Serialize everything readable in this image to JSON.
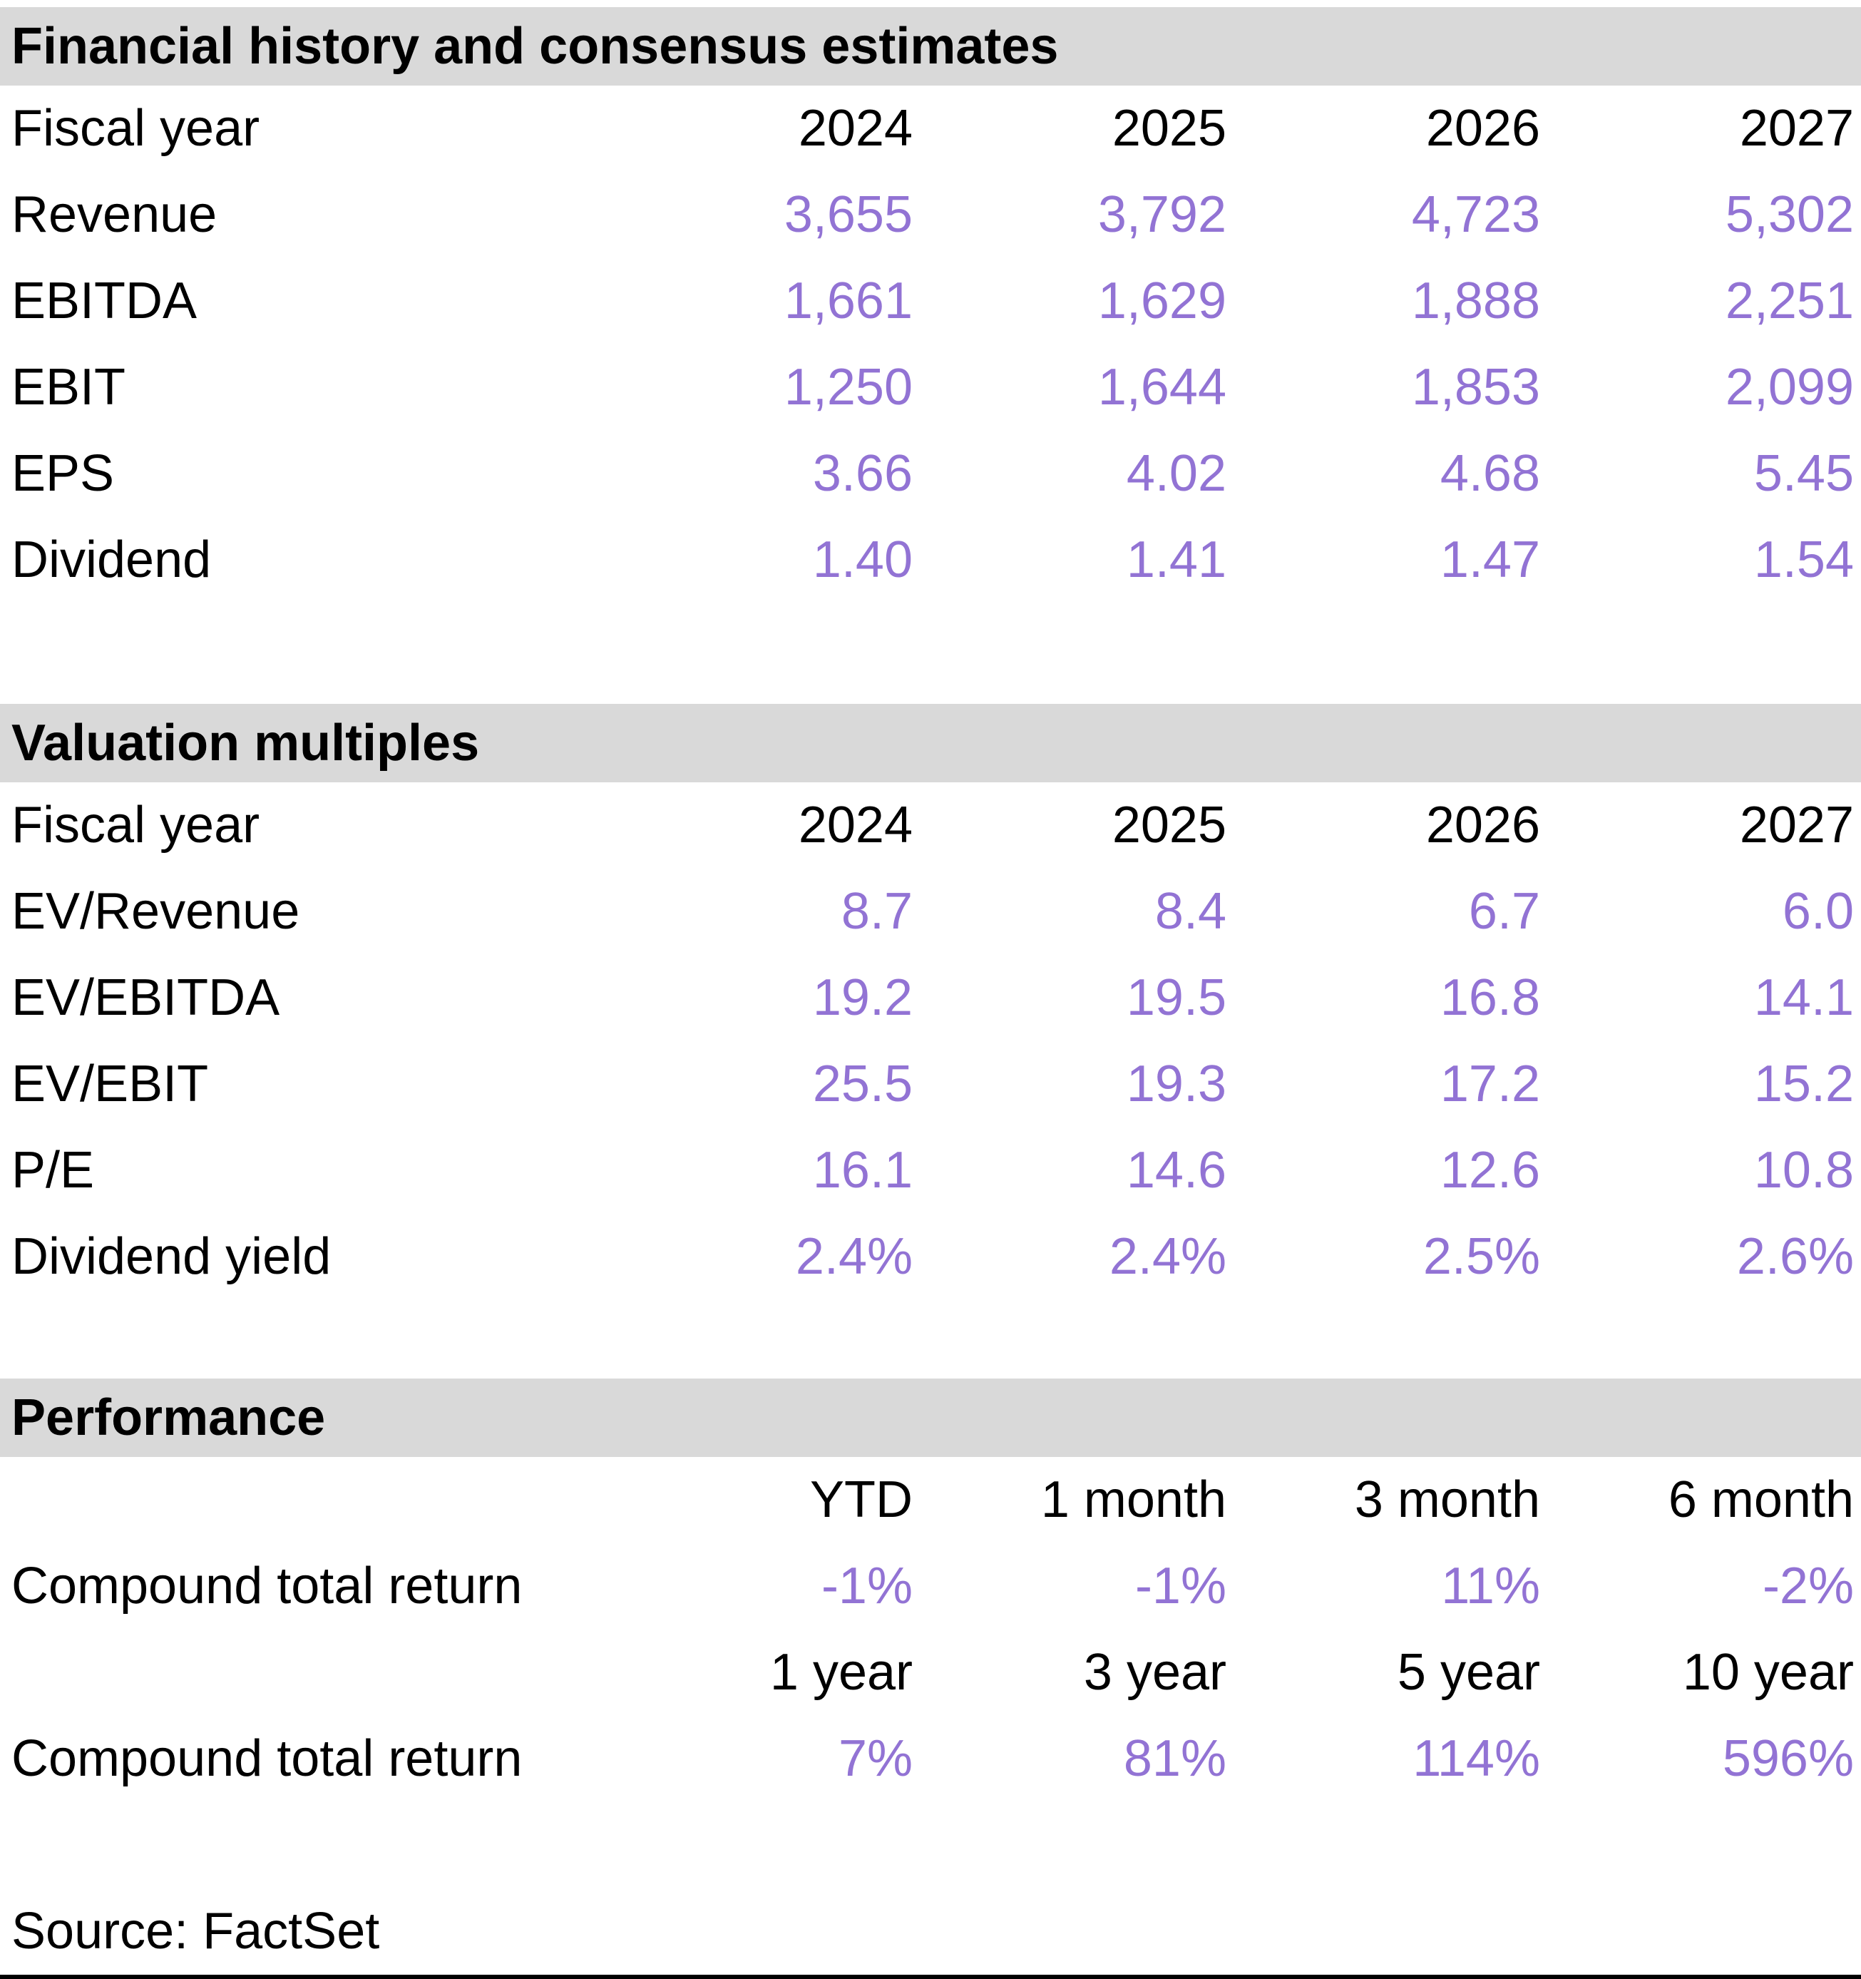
{
  "colors": {
    "accent_purple": "#9273d4",
    "band_gray": "#d9d9d9",
    "text_black": "#000000"
  },
  "sections": [
    {
      "title": "Financial history and consensus estimates",
      "header_row": {
        "label": "Fiscal year",
        "columns": [
          "2024",
          "2025",
          "2026",
          "2027"
        ]
      },
      "rows": [
        {
          "label": "Revenue",
          "values": [
            "3,655",
            "3,792",
            "4,723",
            "5,302"
          ]
        },
        {
          "label": "EBITDA",
          "values": [
            "1,661",
            "1,629",
            "1,888",
            "2,251"
          ]
        },
        {
          "label": "EBIT",
          "values": [
            "1,250",
            "1,644",
            "1,853",
            "2,099"
          ]
        },
        {
          "label": "EPS",
          "values": [
            "3.66",
            "4.02",
            "4.68",
            "5.45"
          ]
        },
        {
          "label": "Dividend",
          "values": [
            "1.40",
            "1.41",
            "1.47",
            "1.54"
          ]
        }
      ]
    },
    {
      "title": "Valuation multiples",
      "header_row": {
        "label": "Fiscal year",
        "columns": [
          "2024",
          "2025",
          "2026",
          "2027"
        ]
      },
      "rows": [
        {
          "label": "EV/Revenue",
          "values": [
            "8.7",
            "8.4",
            "6.7",
            "6.0"
          ]
        },
        {
          "label": "EV/EBITDA",
          "values": [
            "19.2",
            "19.5",
            "16.8",
            "14.1"
          ]
        },
        {
          "label": "EV/EBIT",
          "values": [
            "25.5",
            "19.3",
            "17.2",
            "15.2"
          ]
        },
        {
          "label": "P/E",
          "values": [
            "16.1",
            "14.6",
            "12.6",
            "10.8"
          ]
        },
        {
          "label": "Dividend yield",
          "values": [
            "2.4%",
            "2.4%",
            "2.5%",
            "2.6%"
          ]
        }
      ]
    },
    {
      "title": "Performance",
      "groups": [
        {
          "period_headers": [
            "YTD",
            "1 month",
            "3 month",
            "6 month"
          ],
          "row": {
            "label": "Compound total return",
            "values": [
              "-1%",
              "-1%",
              "11%",
              "-2%"
            ]
          }
        },
        {
          "period_headers": [
            "1 year",
            "3 year",
            "5 year",
            "10 year"
          ],
          "row": {
            "label": "Compound total return",
            "values": [
              "7%",
              "81%",
              "114%",
              "596%"
            ]
          }
        }
      ]
    }
  ],
  "footer": {
    "source": "Source: FactSet"
  }
}
